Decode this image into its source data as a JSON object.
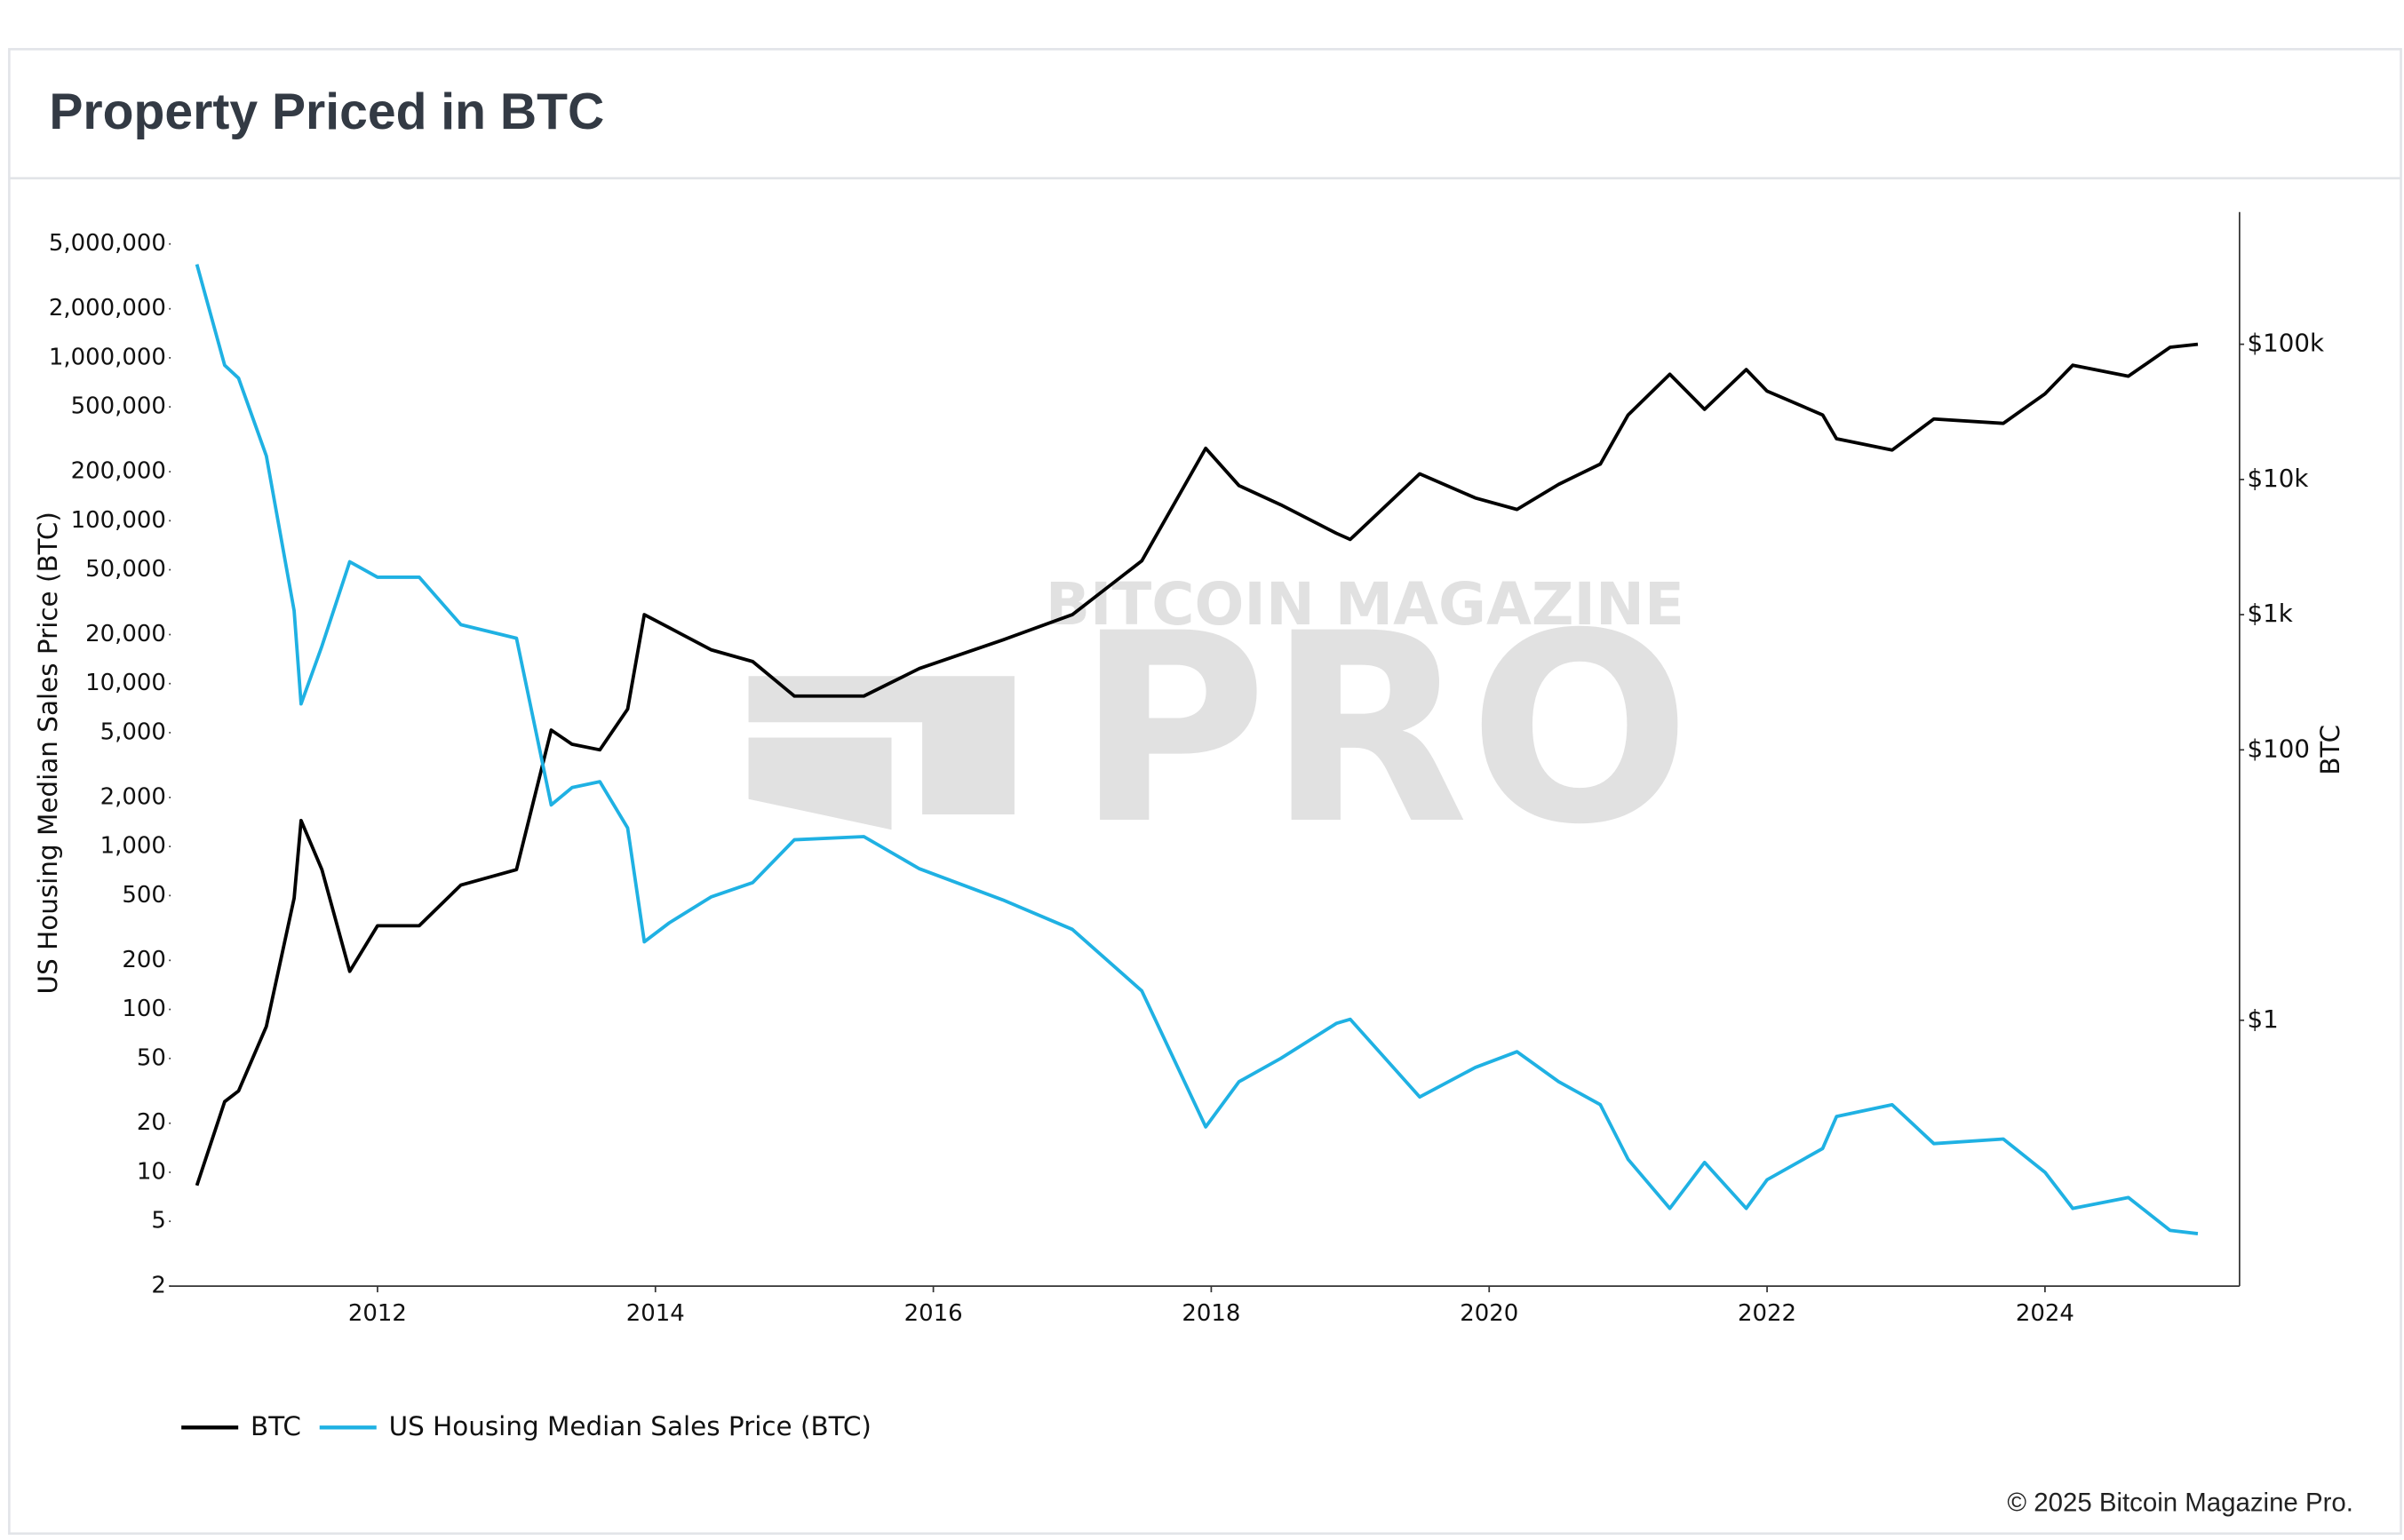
{
  "chart_data": {
    "type": "line",
    "title": "Property Priced in BTC",
    "credit": "© 2025 Bitcoin Magazine Pro.",
    "watermark": {
      "top": "BITCOIN MAGAZINE",
      "main": "PRO"
    },
    "y_label": "US Housing Median Sales Price (BTC)",
    "y2_label": "BTC",
    "log_y": true,
    "log_y2": true,
    "grid": false,
    "legend": "bottom-left",
    "x": [
      2010.7,
      2010.9,
      2011.0,
      2011.2,
      2011.4,
      2011.45,
      2011.6,
      2011.8,
      2012.0,
      2012.3,
      2012.6,
      2013.0,
      2013.25,
      2013.4,
      2013.6,
      2013.8,
      2013.92,
      2014.1,
      2014.4,
      2014.7,
      2015.0,
      2015.5,
      2015.9,
      2016.5,
      2017.0,
      2017.5,
      2017.96,
      2018.2,
      2018.5,
      2018.9,
      2019.0,
      2019.5,
      2019.9,
      2020.2,
      2020.5,
      2020.8,
      2021.0,
      2021.3,
      2021.55,
      2021.85,
      2022.0,
      2022.4,
      2022.5,
      2022.9,
      2023.2,
      2023.7,
      2024.0,
      2024.2,
      2024.6,
      2024.9,
      2025.1
    ],
    "xlim": [
      2010.5,
      2025.4
    ],
    "xticks": [
      2012,
      2014,
      2016,
      2018,
      2020,
      2022,
      2024
    ],
    "ylim": [
      2,
      7850000
    ],
    "yticks": [
      2,
      5,
      10,
      20,
      50,
      100,
      200,
      500,
      {
        "value": 1000,
        "label": "1,000"
      },
      {
        "value": 2000,
        "label": "2,000"
      },
      {
        "value": 5000,
        "label": "5,000"
      },
      {
        "value": 10000,
        "label": "10,000"
      },
      {
        "value": 20000,
        "label": "20,000"
      },
      {
        "value": 50000,
        "label": "50,000"
      },
      {
        "value": 100000,
        "label": "100,000"
      },
      {
        "value": 200000,
        "label": "200,000"
      },
      {
        "value": 500000,
        "label": "500,000"
      },
      {
        "value": 1000000,
        "label": "1,000,000"
      },
      {
        "value": 2000000,
        "label": "2,000,000"
      },
      {
        "value": 5000000,
        "label": "5,000,000"
      }
    ],
    "y2lim": [
      0.0108,
      950000
    ],
    "y2ticks": [
      {
        "value": 1,
        "label": "$1"
      },
      {
        "value": 100,
        "label": "$100"
      },
      {
        "value": 1000,
        "label": "$1k"
      },
      {
        "value": 10000,
        "label": "$10k"
      },
      {
        "value": 100000,
        "label": "$100k"
      }
    ],
    "series": [
      {
        "name": "BTC",
        "color": "#000000",
        "axis": "y2",
        "values": [
          0.06,
          0.25,
          0.3,
          0.9,
          8,
          30,
          13,
          2.3,
          5,
          5,
          10,
          13,
          140,
          110,
          100,
          200,
          1000,
          800,
          550,
          450,
          250,
          250,
          400,
          650,
          1000,
          2500,
          17000,
          9000,
          6500,
          4000,
          3600,
          11000,
          7300,
          6000,
          9200,
          13000,
          30000,
          60000,
          33000,
          65000,
          45000,
          30000,
          20000,
          16500,
          28000,
          26000,
          43000,
          70000,
          58000,
          95000,
          100000
        ]
      },
      {
        "name": "US Housing Median Sales Price (BTC)",
        "color": "#1fb1e3",
        "axis": "y",
        "values": [
          3750000,
          900000,
          750000,
          250000,
          28000,
          7500,
          17000,
          56000,
          45000,
          45000,
          23000,
          19000,
          1800,
          2300,
          2500,
          1300,
          260,
          340,
          490,
          600,
          1100,
          1150,
          730,
          470,
          310,
          130,
          19,
          36,
          50,
          82,
          87,
          29,
          44,
          55,
          36,
          26,
          12,
          6,
          11.5,
          6,
          9,
          14,
          22,
          26,
          15,
          16,
          10,
          6,
          7,
          4.4,
          4.2
        ]
      }
    ]
  }
}
